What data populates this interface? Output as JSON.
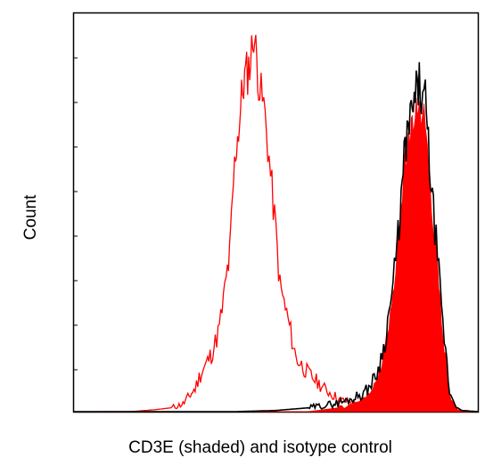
{
  "chart_data": {
    "type": "area",
    "title": "",
    "xlabel": "CD3E (shaded) and isotype control",
    "ylabel": "Count",
    "xscale": "log",
    "xlim": [
      0,
      100
    ],
    "ylim": [
      0,
      100
    ],
    "grid": false,
    "legend": "none",
    "x_tick_labels": [],
    "y_tick_labels": [],
    "series": [
      {
        "style": "outline",
        "color": "#ff0000",
        "x": [
          7,
          14,
          20,
          24,
          27,
          28.5,
          30,
          31,
          32.5,
          34,
          35,
          36,
          37,
          38,
          38.5,
          39,
          39.5,
          40,
          40.5,
          41,
          41.5,
          42,
          42.5,
          43,
          43.5,
          44,
          44.5,
          45,
          45.5,
          46,
          47,
          48,
          49,
          50,
          51,
          53,
          55,
          58,
          62,
          66,
          72,
          78,
          84,
          90,
          96,
          100
        ],
        "y": [
          0,
          0,
          0.5,
          1,
          2,
          4,
          6,
          9,
          12,
          15,
          18,
          22,
          29,
          37,
          40,
          50,
          60,
          68,
          72,
          76,
          82,
          86,
          88,
          89,
          91,
          94,
          100,
          94,
          90,
          84,
          80,
          70,
          58,
          47,
          33,
          24,
          14,
          10,
          6,
          3,
          1.5,
          0.5,
          0.3,
          0.2,
          0.1,
          0
        ]
      },
      {
        "style": "outline",
        "color": "#000000",
        "x": [
          0,
          40,
          50,
          58,
          64,
          68,
          70,
          72,
          74,
          75,
          76,
          77,
          78,
          79,
          80,
          80.5,
          81,
          81.5,
          82,
          82.5,
          83,
          83.5,
          84,
          84.5,
          85,
          85.5,
          86,
          87,
          87.5,
          88,
          88.5,
          89,
          90,
          91,
          92,
          93,
          94,
          95,
          96,
          100
        ],
        "y": [
          0,
          0,
          0.3,
          1,
          2,
          3,
          4,
          5,
          8,
          10,
          14,
          18,
          26,
          33,
          43,
          49,
          55,
          62,
          69,
          72,
          75,
          77,
          79,
          82,
          84,
          86,
          82,
          81,
          73,
          66,
          58,
          52,
          41,
          26,
          16,
          5,
          3,
          1,
          0.3,
          0
        ]
      },
      {
        "style": "filled",
        "color": "#ff0000",
        "x": [
          0,
          58,
          64,
          68,
          70,
          72,
          74,
          75,
          76,
          77,
          78,
          79,
          80,
          80.5,
          81,
          81.5,
          82,
          82.5,
          83,
          83.5,
          84,
          84.5,
          85,
          85.5,
          86,
          87,
          87.5,
          88,
          88.5,
          89,
          90,
          91,
          92,
          93,
          94,
          95,
          100
        ],
        "y": [
          0,
          0,
          0.8,
          1.5,
          2.5,
          3.5,
          6,
          8,
          12,
          16,
          23,
          30,
          40,
          47,
          52,
          59,
          66,
          68,
          71,
          73,
          75,
          78,
          80,
          81,
          78,
          77,
          70,
          63,
          55,
          49,
          38,
          23,
          14,
          4,
          2,
          0.5,
          0
        ]
      }
    ]
  }
}
